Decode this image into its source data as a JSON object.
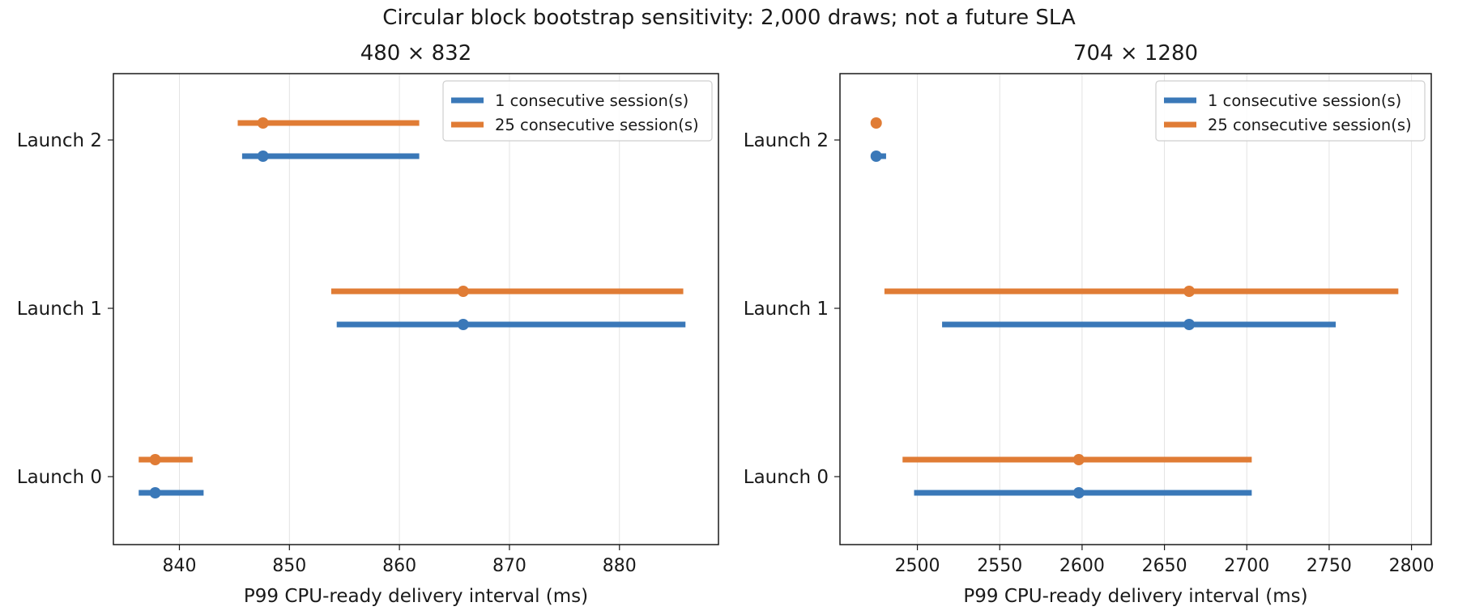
{
  "figure": {
    "suptitle": "Circular block bootstrap sensitivity: 2,000 draws; not a future SLA"
  },
  "chart_data": [
    {
      "type": "errorbar",
      "title": "480 × 832",
      "xlabel": "P99 CPU-ready delivery interval (ms)",
      "ylabel": "",
      "xlim": [
        834,
        889
      ],
      "xticks": [
        840,
        850,
        860,
        870,
        880
      ],
      "categories": [
        "Launch 0",
        "Launch 1",
        "Launch 2"
      ],
      "grid": "x",
      "legend_position": "top-right",
      "series": [
        {
          "name": "1 consecutive session(s)",
          "color": "#3a78b8",
          "points": [
            {
              "category": "Launch 0",
              "estimate": 837.8,
              "low": 836.3,
              "high": 842.2
            },
            {
              "category": "Launch 1",
              "estimate": 865.8,
              "low": 854.3,
              "high": 886.0
            },
            {
              "category": "Launch 2",
              "estimate": 847.6,
              "low": 845.7,
              "high": 861.8
            }
          ]
        },
        {
          "name": "25 consecutive session(s)",
          "color": "#e07c35",
          "points": [
            {
              "category": "Launch 0",
              "estimate": 837.8,
              "low": 836.3,
              "high": 841.2
            },
            {
              "category": "Launch 1",
              "estimate": 865.8,
              "low": 853.8,
              "high": 885.8
            },
            {
              "category": "Launch 2",
              "estimate": 847.6,
              "low": 845.3,
              "high": 861.8
            }
          ]
        }
      ]
    },
    {
      "type": "errorbar",
      "title": "704 × 1280",
      "xlabel": "P99 CPU-ready delivery interval (ms)",
      "ylabel": "",
      "xlim": [
        2453,
        2812
      ],
      "xticks": [
        2500,
        2550,
        2600,
        2650,
        2700,
        2750,
        2800
      ],
      "categories": [
        "Launch 0",
        "Launch 1",
        "Launch 2"
      ],
      "grid": "x",
      "legend_position": "top-right",
      "series": [
        {
          "name": "1 consecutive session(s)",
          "color": "#3a78b8",
          "points": [
            {
              "category": "Launch 0",
              "estimate": 2598,
              "low": 2498,
              "high": 2703
            },
            {
              "category": "Launch 1",
              "estimate": 2665,
              "low": 2515,
              "high": 2754
            },
            {
              "category": "Launch 2",
              "estimate": 2475,
              "low": 2472,
              "high": 2481
            }
          ]
        },
        {
          "name": "25 consecutive session(s)",
          "color": "#e07c35",
          "points": [
            {
              "category": "Launch 0",
              "estimate": 2598,
              "low": 2491,
              "high": 2703
            },
            {
              "category": "Launch 1",
              "estimate": 2665,
              "low": 2480,
              "high": 2792
            },
            {
              "category": "Launch 2",
              "estimate": 2475,
              "low": 2472,
              "high": 2477
            }
          ]
        }
      ]
    }
  ]
}
